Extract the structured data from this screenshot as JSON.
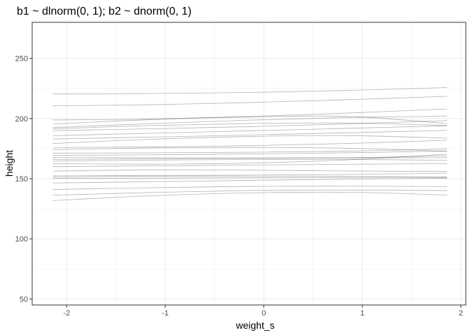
{
  "chart_data": {
    "type": "line",
    "title": "b1 ~ dlnorm(0, 1); b2 ~ dnorm(0, 1)",
    "xlabel": "weight_s",
    "ylabel": "height",
    "xlim": [
      -2.35,
      2.05
    ],
    "ylim": [
      45,
      280
    ],
    "x_ticks": [
      -2,
      -1,
      0,
      1,
      2
    ],
    "x_tick_labels": [
      "-2",
      "-1",
      "0",
      "1",
      "2"
    ],
    "y_ticks": [
      50,
      100,
      150,
      200,
      250
    ],
    "y_tick_labels": [
      "50",
      "100",
      "150",
      "200",
      "250"
    ],
    "grid": true,
    "line_color": "#000000",
    "x": [
      -2.14,
      -1.14,
      -0.14,
      0.86,
      1.86
    ],
    "series": [
      {
        "values": [
          220.5,
          220.8,
          221.7,
          223.4,
          225.8
        ]
      },
      {
        "values": [
          210.6,
          211.5,
          213.3,
          215.7,
          218.5
        ]
      },
      {
        "values": [
          198.8,
          199.6,
          201.7,
          204.6,
          208.0
        ]
      },
      {
        "values": [
          195.5,
          199.1,
          201.4,
          201.8,
          195.8
        ]
      },
      {
        "values": [
          192.5,
          195.8,
          198.7,
          200.9,
          202.0
        ]
      },
      {
        "values": [
          191.5,
          194.2,
          195.9,
          196.3,
          194.3
        ]
      },
      {
        "values": [
          190.0,
          191.5,
          193.3,
          195.6,
          198.3
        ]
      },
      {
        "values": [
          185.8,
          187.8,
          189.8,
          191.9,
          194.0
        ]
      },
      {
        "values": [
          183.0,
          184.6,
          186.3,
          188.2,
          190.2
        ]
      },
      {
        "values": [
          179.3,
          182.8,
          185.1,
          185.8,
          183.7
        ]
      },
      {
        "values": [
          176.0,
          176.4,
          177.5,
          179.3,
          182.0
        ]
      },
      {
        "values": [
          174.2,
          175.6,
          176.1,
          175.3,
          172.9
        ]
      },
      {
        "values": [
          171.3,
          171.5,
          172.0,
          172.9,
          174.8
        ]
      },
      {
        "values": [
          169.4,
          169.9,
          170.6,
          171.6,
          173.0
        ]
      },
      {
        "values": [
          167.8,
          167.4,
          167.2,
          167.5,
          169.0
        ]
      },
      {
        "values": [
          166.1,
          166.5,
          167.0,
          167.3,
          167.5
        ]
      },
      {
        "values": [
          164.6,
          165.5,
          166.0,
          166.0,
          165.3
        ]
      },
      {
        "values": [
          162.5,
          162.1,
          163.0,
          165.7,
          170.4
        ]
      },
      {
        "values": [
          160.0,
          160.7,
          161.4,
          162.0,
          162.6
        ]
      },
      {
        "values": [
          156.3,
          157.3,
          157.1,
          156.4,
          156.0
        ]
      },
      {
        "values": [
          152.4,
          152.7,
          153.0,
          153.5,
          154.6
        ]
      },
      {
        "values": [
          151.4,
          152.1,
          152.2,
          151.8,
          150.9
        ]
      },
      {
        "values": [
          150.2,
          150.5,
          150.8,
          151.1,
          151.5
        ]
      },
      {
        "values": [
          146.4,
          147.5,
          148.6,
          149.6,
          150.5
        ]
      },
      {
        "values": [
          141.0,
          142.5,
          143.6,
          143.8,
          143.4
        ]
      },
      {
        "values": [
          136.3,
          138.5,
          140.2,
          140.5,
          140.2
        ]
      },
      {
        "values": [
          131.8,
          135.8,
          138.2,
          138.7,
          136.4
        ]
      }
    ]
  }
}
